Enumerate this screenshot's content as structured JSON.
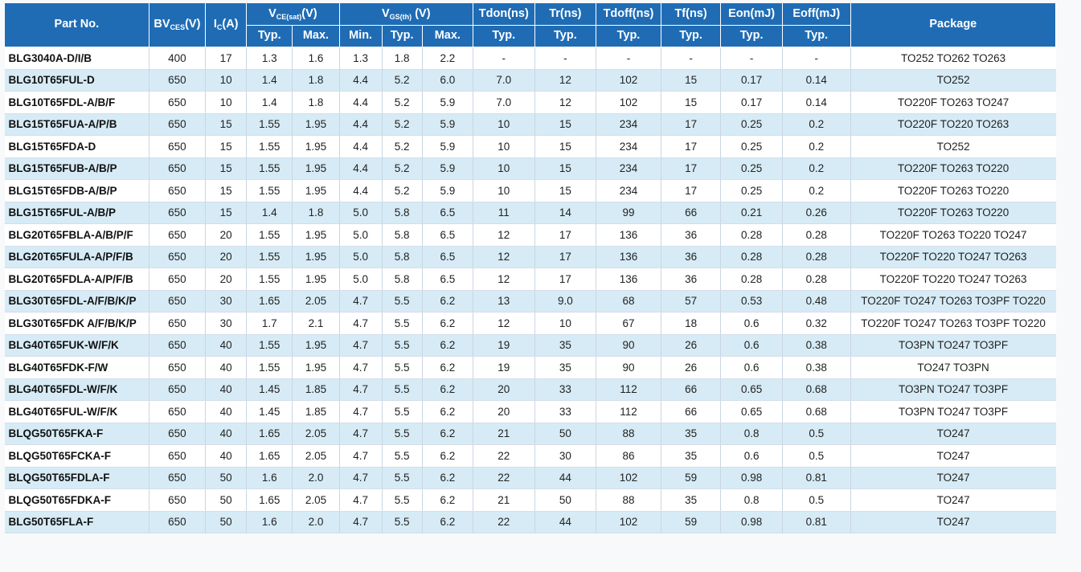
{
  "headers": {
    "part_no": "Part No.",
    "bv": {
      "main": "BV",
      "sub": "CES",
      "unit": "(V)"
    },
    "ic": {
      "main": "I",
      "sub": "C",
      "unit": "(A)"
    },
    "vce": {
      "main": "V",
      "sub": "CE(sat)",
      "unit": "(V)"
    },
    "vgs": {
      "main": "V",
      "sub": "GS(th)",
      "unit": " (V)"
    },
    "tdon": "Tdon(ns)",
    "tr": "Tr(ns)",
    "tdoff": "Tdoff(ns)",
    "tf": "Tf(ns)",
    "eon": "Eon(mJ)",
    "eoff": "Eoff(mJ)",
    "package": "Package",
    "sub": {
      "vce_typ": "Typ.",
      "vce_max": "Max.",
      "vgs_min": "Min.",
      "vgs_typ": "Typ.",
      "vgs_max": "Max.",
      "tdon_typ": "Typ.",
      "tr_typ": "Typ.",
      "tdoff_typ": "Typ.",
      "tf_typ": "Typ.",
      "eon_typ": "Typ.",
      "eoff_typ": "Typ."
    }
  },
  "rows": [
    [
      "BLG3040A-D/I/B",
      "400",
      "17",
      "1.3",
      "1.6",
      "1.3",
      "1.8",
      "2.2",
      "-",
      "-",
      "-",
      "-",
      "-",
      "-",
      "TO252 TO262 TO263"
    ],
    [
      "BLG10T65FUL-D",
      "650",
      "10",
      "1.4",
      "1.8",
      "4.4",
      "5.2",
      "6.0",
      "7.0",
      "12",
      "102",
      "15",
      "0.17",
      "0.14",
      "TO252"
    ],
    [
      "BLG10T65FDL-A/B/F",
      "650",
      "10",
      "1.4",
      "1.8",
      "4.4",
      "5.2",
      "5.9",
      "7.0",
      "12",
      "102",
      "15",
      "0.17",
      "0.14",
      "TO220F TO263 TO247"
    ],
    [
      "BLG15T65FUA-A/P/B",
      "650",
      "15",
      "1.55",
      "1.95",
      "4.4",
      "5.2",
      "5.9",
      "10",
      "15",
      "234",
      "17",
      "0.25",
      "0.2",
      "TO220F TO220 TO263"
    ],
    [
      "BLG15T65FDA-D",
      "650",
      "15",
      "1.55",
      "1.95",
      "4.4",
      "5.2",
      "5.9",
      "10",
      "15",
      "234",
      "17",
      "0.25",
      "0.2",
      "TO252"
    ],
    [
      "BLG15T65FUB-A/B/P",
      "650",
      "15",
      "1.55",
      "1.95",
      "4.4",
      "5.2",
      "5.9",
      "10",
      "15",
      "234",
      "17",
      "0.25",
      "0.2",
      "TO220F TO263 TO220"
    ],
    [
      "BLG15T65FDB-A/B/P",
      "650",
      "15",
      "1.55",
      "1.95",
      "4.4",
      "5.2",
      "5.9",
      "10",
      "15",
      "234",
      "17",
      "0.25",
      "0.2",
      "TO220F TO263 TO220"
    ],
    [
      "BLG15T65FUL-A/B/P",
      "650",
      "15",
      "1.4",
      "1.8",
      "5.0",
      "5.8",
      "6.5",
      "11",
      "14",
      "99",
      "66",
      "0.21",
      "0.26",
      "TO220F TO263 TO220"
    ],
    [
      "BLG20T65FBLA-A/B/P/F",
      "650",
      "20",
      "1.55",
      "1.95",
      "5.0",
      "5.8",
      "6.5",
      "12",
      "17",
      "136",
      "36",
      "0.28",
      "0.28",
      "TO220F TO263 TO220 TO247"
    ],
    [
      "BLG20T65FULA-A/P/F/B",
      "650",
      "20",
      "1.55",
      "1.95",
      "5.0",
      "5.8",
      "6.5",
      "12",
      "17",
      "136",
      "36",
      "0.28",
      "0.28",
      "TO220F TO220 TO247 TO263"
    ],
    [
      "BLG20T65FDLA-A/P/F/B",
      "650",
      "20",
      "1.55",
      "1.95",
      "5.0",
      "5.8",
      "6.5",
      "12",
      "17",
      "136",
      "36",
      "0.28",
      "0.28",
      "TO220F TO220 TO247 TO263"
    ],
    [
      "BLG30T65FDL-A/F/B/K/P",
      "650",
      "30",
      "1.65",
      "2.05",
      "4.7",
      "5.5",
      "6.2",
      "13",
      "9.0",
      "68",
      "57",
      "0.53",
      "0.48",
      "TO220F TO247 TO263 TO3PF TO220"
    ],
    [
      "BLG30T65FDK A/F/B/K/P",
      "650",
      "30",
      "1.7",
      "2.1",
      "4.7",
      "5.5",
      "6.2",
      "12",
      "10",
      "67",
      "18",
      "0.6",
      "0.32",
      "TO220F TO247 TO263 TO3PF TO220"
    ],
    [
      "BLG40T65FUK-W/F/K",
      "650",
      "40",
      "1.55",
      "1.95",
      "4.7",
      "5.5",
      "6.2",
      "19",
      "35",
      "90",
      "26",
      "0.6",
      "0.38",
      "TO3PN TO247 TO3PF"
    ],
    [
      "BLG40T65FDK-F/W",
      "650",
      "40",
      "1.55",
      "1.95",
      "4.7",
      "5.5",
      "6.2",
      "19",
      "35",
      "90",
      "26",
      "0.6",
      "0.38",
      "TO247 TO3PN"
    ],
    [
      "BLG40T65FDL-W/F/K",
      "650",
      "40",
      "1.45",
      "1.85",
      "4.7",
      "5.5",
      "6.2",
      "20",
      "33",
      "112",
      "66",
      "0.65",
      "0.68",
      "TO3PN TO247 TO3PF"
    ],
    [
      "BLG40T65FUL-W/F/K",
      "650",
      "40",
      "1.45",
      "1.85",
      "4.7",
      "5.5",
      "6.2",
      "20",
      "33",
      "112",
      "66",
      "0.65",
      "0.68",
      "TO3PN TO247 TO3PF"
    ],
    [
      "BLQG50T65FKA-F",
      "650",
      "40",
      "1.65",
      "2.05",
      "4.7",
      "5.5",
      "6.2",
      "21",
      "50",
      "88",
      "35",
      "0.8",
      "0.5",
      "TO247"
    ],
    [
      "BLQG50T65FCKA-F",
      "650",
      "40",
      "1.65",
      "2.05",
      "4.7",
      "5.5",
      "6.2",
      "22",
      "30",
      "86",
      "35",
      "0.6",
      "0.5",
      "TO247"
    ],
    [
      "BLQG50T65FDLA-F",
      "650",
      "50",
      "1.6",
      "2.0",
      "4.7",
      "5.5",
      "6.2",
      "22",
      "44",
      "102",
      "59",
      "0.98",
      "0.81",
      "TO247"
    ],
    [
      "BLQG50T65FDKA-F",
      "650",
      "50",
      "1.65",
      "2.05",
      "4.7",
      "5.5",
      "6.2",
      "21",
      "50",
      "88",
      "35",
      "0.8",
      "0.5",
      "TO247"
    ],
    [
      "BLG50T65FLA-F",
      "650",
      "50",
      "1.6",
      "2.0",
      "4.7",
      "5.5",
      "6.2",
      "22",
      "44",
      "102",
      "59",
      "0.98",
      "0.81",
      "TO247"
    ]
  ],
  "colors": {
    "header_bg": "#1f6cb5",
    "header_text": "#ffffff",
    "row_alt": "#d6ebf5",
    "row_base": "#ffffff",
    "page_bg": "#f7f9fb"
  }
}
